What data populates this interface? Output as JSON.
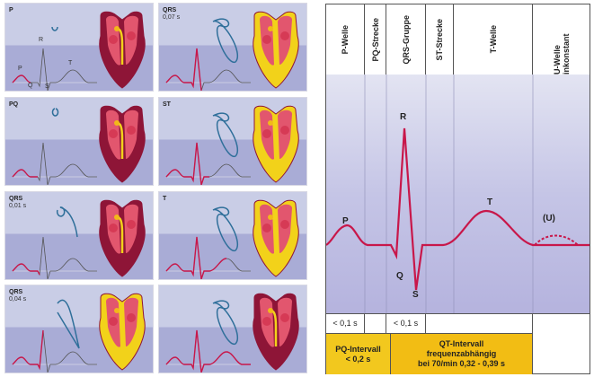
{
  "panels": [
    {
      "label": "P",
      "sub": "",
      "highlight": "P",
      "wave_labels": [
        "P",
        "Q",
        "R",
        "S",
        "T"
      ]
    },
    {
      "label": "QRS",
      "sub": "0,07 s",
      "highlight": "QRS_late"
    },
    {
      "label": "PQ",
      "sub": "",
      "highlight": "PQ"
    },
    {
      "label": "ST",
      "sub": "",
      "highlight": "ST"
    },
    {
      "label": "QRS",
      "sub": "0,01 s",
      "highlight": "QRS_early"
    },
    {
      "label": "T",
      "sub": "",
      "highlight": "T"
    },
    {
      "label": "QRS",
      "sub": "0,04 s",
      "highlight": "QRS_mid"
    },
    {
      "label": "",
      "sub": "",
      "highlight": "all"
    }
  ],
  "diagram": {
    "headers": [
      "P-Welle",
      "PQ-Strecke",
      "QRS-Gruppe",
      "ST-Strecke",
      "T-Welle",
      "U-Welle inkonstant"
    ],
    "wave_labels": {
      "P": "P",
      "Q": "Q",
      "R": "R",
      "S": "S",
      "T": "T",
      "U": "(U)"
    },
    "durations": {
      "p": "< 0,1 s",
      "qrs": "< 0,1 s"
    },
    "pq_interval": {
      "title": "PQ-Intervall",
      "value": "< 0,2 s"
    },
    "qt_interval": {
      "title": "QT-Intervall",
      "line2": "frequenzabhängig",
      "line3": "bei 70/min  0,32 - 0,39 s"
    }
  },
  "colors": {
    "ecg": "#c8174a",
    "loop": "#2f6f9a",
    "heart_dark": "#8e1537",
    "excited": "#f2d21a",
    "interval": "#f2c21a",
    "plot_bg": "#c8c8e8"
  }
}
